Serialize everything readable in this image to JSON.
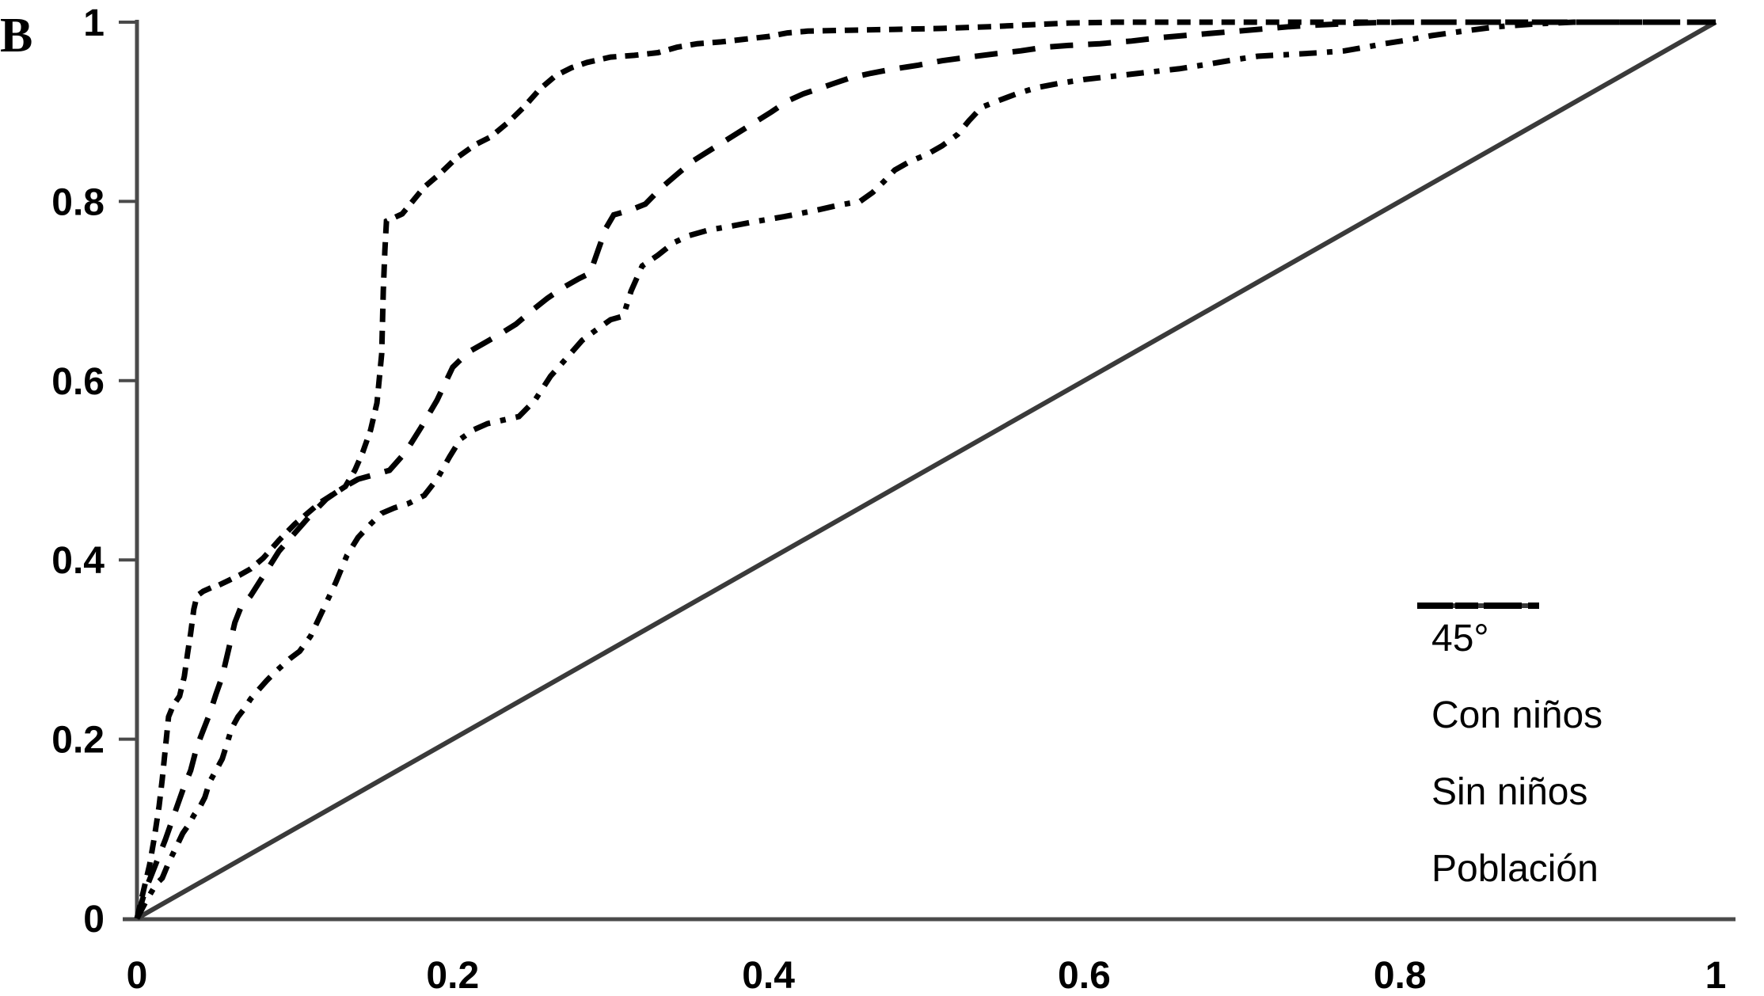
{
  "panel_label": "B",
  "colors": {
    "background": "#ffffff",
    "axis": "#4a4a4a",
    "diagonal": "#3a3a3a",
    "curve": "#000000"
  },
  "chart_data": {
    "type": "line",
    "title": "",
    "xlabel": "",
    "ylabel": "",
    "xlim": [
      0,
      1
    ],
    "ylim": [
      0,
      1
    ],
    "grid": false,
    "legend_position": "lower-right",
    "x_ticks": [
      0,
      0.2,
      0.4,
      0.6,
      0.8,
      1
    ],
    "x_tick_labels": [
      "0",
      "0.2",
      "0.4",
      "0.6",
      "0.8",
      "1"
    ],
    "y_ticks": [
      0,
      0.2,
      0.4,
      0.6,
      0.8,
      1
    ],
    "y_tick_labels": [
      "0",
      "0.2",
      "0.4",
      "0.6",
      "0.8",
      "1"
    ],
    "series": [
      {
        "name": "45°",
        "style": "solid",
        "color": "#3a3a3a",
        "points": [
          [
            0,
            0
          ],
          [
            1,
            1
          ]
        ]
      },
      {
        "name": "Con niños",
        "style": "dash-dot",
        "color": "#000000",
        "points": [
          [
            0,
            0
          ],
          [
            0.006,
            0.02
          ],
          [
            0.012,
            0.038
          ],
          [
            0.016,
            0.045
          ],
          [
            0.02,
            0.062
          ],
          [
            0.025,
            0.08
          ],
          [
            0.029,
            0.095
          ],
          [
            0.033,
            0.105
          ],
          [
            0.036,
            0.115
          ],
          [
            0.04,
            0.125
          ],
          [
            0.043,
            0.135
          ],
          [
            0.046,
            0.152
          ],
          [
            0.05,
            0.165
          ],
          [
            0.054,
            0.178
          ],
          [
            0.057,
            0.195
          ],
          [
            0.06,
            0.212
          ],
          [
            0.064,
            0.225
          ],
          [
            0.068,
            0.234
          ],
          [
            0.072,
            0.245
          ],
          [
            0.077,
            0.255
          ],
          [
            0.082,
            0.265
          ],
          [
            0.087,
            0.274
          ],
          [
            0.092,
            0.282
          ],
          [
            0.097,
            0.29
          ],
          [
            0.103,
            0.298
          ],
          [
            0.11,
            0.315
          ],
          [
            0.118,
            0.345
          ],
          [
            0.126,
            0.375
          ],
          [
            0.133,
            0.405
          ],
          [
            0.14,
            0.425
          ],
          [
            0.148,
            0.44
          ],
          [
            0.155,
            0.452
          ],
          [
            0.163,
            0.458
          ],
          [
            0.172,
            0.463
          ],
          [
            0.182,
            0.472
          ],
          [
            0.19,
            0.49
          ],
          [
            0.198,
            0.515
          ],
          [
            0.205,
            0.535
          ],
          [
            0.213,
            0.545
          ],
          [
            0.222,
            0.552
          ],
          [
            0.232,
            0.556
          ],
          [
            0.242,
            0.56
          ],
          [
            0.252,
            0.578
          ],
          [
            0.262,
            0.605
          ],
          [
            0.272,
            0.625
          ],
          [
            0.282,
            0.645
          ],
          [
            0.292,
            0.658
          ],
          [
            0.3,
            0.668
          ],
          [
            0.308,
            0.672
          ],
          [
            0.313,
            0.7
          ],
          [
            0.32,
            0.728
          ],
          [
            0.33,
            0.74
          ],
          [
            0.34,
            0.754
          ],
          [
            0.35,
            0.762
          ],
          [
            0.362,
            0.768
          ],
          [
            0.375,
            0.772
          ],
          [
            0.39,
            0.777
          ],
          [
            0.41,
            0.783
          ],
          [
            0.43,
            0.79
          ],
          [
            0.445,
            0.796
          ],
          [
            0.458,
            0.8
          ],
          [
            0.466,
            0.81
          ],
          [
            0.473,
            0.822
          ],
          [
            0.48,
            0.835
          ],
          [
            0.49,
            0.845
          ],
          [
            0.5,
            0.852
          ],
          [
            0.51,
            0.862
          ],
          [
            0.52,
            0.875
          ],
          [
            0.527,
            0.89
          ],
          [
            0.535,
            0.905
          ],
          [
            0.545,
            0.912
          ],
          [
            0.557,
            0.92
          ],
          [
            0.57,
            0.927
          ],
          [
            0.585,
            0.932
          ],
          [
            0.6,
            0.936
          ],
          [
            0.62,
            0.94
          ],
          [
            0.64,
            0.944
          ],
          [
            0.66,
            0.948
          ],
          [
            0.678,
            0.953
          ],
          [
            0.695,
            0.958
          ],
          [
            0.71,
            0.962
          ],
          [
            0.73,
            0.964
          ],
          [
            0.75,
            0.966
          ],
          [
            0.765,
            0.968
          ],
          [
            0.778,
            0.972
          ],
          [
            0.79,
            0.976
          ],
          [
            0.805,
            0.98
          ],
          [
            0.82,
            0.985
          ],
          [
            0.84,
            0.99
          ],
          [
            0.862,
            0.995
          ],
          [
            0.885,
            0.998
          ],
          [
            0.91,
            1
          ],
          [
            1,
            1
          ]
        ]
      },
      {
        "name": "Sin niños",
        "style": "fine-dash",
        "color": "#000000",
        "points": [
          [
            0,
            0
          ],
          [
            0.004,
            0.03
          ],
          [
            0.008,
            0.06
          ],
          [
            0.011,
            0.09
          ],
          [
            0.014,
            0.125
          ],
          [
            0.016,
            0.155
          ],
          [
            0.018,
            0.19
          ],
          [
            0.02,
            0.225
          ],
          [
            0.023,
            0.238
          ],
          [
            0.027,
            0.248
          ],
          [
            0.03,
            0.27
          ],
          [
            0.032,
            0.295
          ],
          [
            0.034,
            0.318
          ],
          [
            0.036,
            0.345
          ],
          [
            0.038,
            0.36
          ],
          [
            0.042,
            0.365
          ],
          [
            0.047,
            0.369
          ],
          [
            0.052,
            0.372
          ],
          [
            0.058,
            0.377
          ],
          [
            0.065,
            0.383
          ],
          [
            0.072,
            0.39
          ],
          [
            0.08,
            0.402
          ],
          [
            0.09,
            0.422
          ],
          [
            0.1,
            0.44
          ],
          [
            0.108,
            0.452
          ],
          [
            0.116,
            0.464
          ],
          [
            0.124,
            0.473
          ],
          [
            0.132,
            0.482
          ],
          [
            0.138,
            0.5
          ],
          [
            0.143,
            0.52
          ],
          [
            0.148,
            0.545
          ],
          [
            0.152,
            0.575
          ],
          [
            0.155,
            0.63
          ],
          [
            0.156,
            0.7
          ],
          [
            0.157,
            0.745
          ],
          [
            0.158,
            0.778
          ],
          [
            0.168,
            0.786
          ],
          [
            0.182,
            0.816
          ],
          [
            0.192,
            0.831
          ],
          [
            0.202,
            0.848
          ],
          [
            0.214,
            0.863
          ],
          [
            0.224,
            0.872
          ],
          [
            0.235,
            0.888
          ],
          [
            0.245,
            0.905
          ],
          [
            0.255,
            0.925
          ],
          [
            0.265,
            0.94
          ],
          [
            0.275,
            0.949
          ],
          [
            0.285,
            0.955
          ],
          [
            0.3,
            0.961
          ],
          [
            0.315,
            0.963
          ],
          [
            0.33,
            0.966
          ],
          [
            0.342,
            0.972
          ],
          [
            0.355,
            0.976
          ],
          [
            0.37,
            0.978
          ],
          [
            0.385,
            0.981
          ],
          [
            0.4,
            0.984
          ],
          [
            0.412,
            0.988
          ],
          [
            0.425,
            0.99
          ],
          [
            0.45,
            0.991
          ],
          [
            0.48,
            0.992
          ],
          [
            0.51,
            0.993
          ],
          [
            0.54,
            0.995
          ],
          [
            0.565,
            0.997
          ],
          [
            0.59,
            0.999
          ],
          [
            0.62,
            1
          ],
          [
            1,
            1
          ]
        ]
      },
      {
        "name": "Población",
        "style": "long-dash",
        "color": "#000000",
        "points": [
          [
            0,
            0
          ],
          [
            0.005,
            0.03
          ],
          [
            0.01,
            0.052
          ],
          [
            0.014,
            0.07
          ],
          [
            0.018,
            0.088
          ],
          [
            0.022,
            0.108
          ],
          [
            0.026,
            0.128
          ],
          [
            0.03,
            0.148
          ],
          [
            0.034,
            0.165
          ],
          [
            0.038,
            0.192
          ],
          [
            0.042,
            0.21
          ],
          [
            0.046,
            0.228
          ],
          [
            0.05,
            0.25
          ],
          [
            0.054,
            0.27
          ],
          [
            0.058,
            0.3
          ],
          [
            0.062,
            0.33
          ],
          [
            0.066,
            0.348
          ],
          [
            0.072,
            0.36
          ],
          [
            0.08,
            0.382
          ],
          [
            0.09,
            0.41
          ],
          [
            0.1,
            0.43
          ],
          [
            0.11,
            0.45
          ],
          [
            0.12,
            0.468
          ],
          [
            0.13,
            0.48
          ],
          [
            0.14,
            0.49
          ],
          [
            0.15,
            0.495
          ],
          [
            0.16,
            0.5
          ],
          [
            0.17,
            0.52
          ],
          [
            0.18,
            0.548
          ],
          [
            0.19,
            0.578
          ],
          [
            0.2,
            0.615
          ],
          [
            0.21,
            0.632
          ],
          [
            0.22,
            0.642
          ],
          [
            0.23,
            0.652
          ],
          [
            0.24,
            0.663
          ],
          [
            0.25,
            0.678
          ],
          [
            0.26,
            0.692
          ],
          [
            0.27,
            0.704
          ],
          [
            0.28,
            0.714
          ],
          [
            0.287,
            0.72
          ],
          [
            0.292,
            0.745
          ],
          [
            0.297,
            0.77
          ],
          [
            0.302,
            0.785
          ],
          [
            0.312,
            0.79
          ],
          [
            0.322,
            0.797
          ],
          [
            0.332,
            0.815
          ],
          [
            0.342,
            0.83
          ],
          [
            0.352,
            0.845
          ],
          [
            0.362,
            0.856
          ],
          [
            0.372,
            0.867
          ],
          [
            0.382,
            0.878
          ],
          [
            0.392,
            0.889
          ],
          [
            0.402,
            0.9
          ],
          [
            0.412,
            0.912
          ],
          [
            0.422,
            0.92
          ],
          [
            0.432,
            0.926
          ],
          [
            0.442,
            0.932
          ],
          [
            0.452,
            0.938
          ],
          [
            0.465,
            0.943
          ],
          [
            0.48,
            0.948
          ],
          [
            0.495,
            0.952
          ],
          [
            0.51,
            0.957
          ],
          [
            0.527,
            0.961
          ],
          [
            0.545,
            0.965
          ],
          [
            0.56,
            0.968
          ],
          [
            0.575,
            0.972
          ],
          [
            0.59,
            0.974
          ],
          [
            0.61,
            0.976
          ],
          [
            0.63,
            0.979
          ],
          [
            0.65,
            0.983
          ],
          [
            0.67,
            0.986
          ],
          [
            0.69,
            0.989
          ],
          [
            0.71,
            0.992
          ],
          [
            0.73,
            0.995
          ],
          [
            0.75,
            0.997
          ],
          [
            0.775,
            0.999
          ],
          [
            0.8,
            1
          ],
          [
            1,
            1
          ]
        ]
      }
    ]
  },
  "legend": {
    "items": [
      {
        "label": "45°"
      },
      {
        "label": "Con niños"
      },
      {
        "label": "Sin niños"
      },
      {
        "label": "Población"
      }
    ]
  }
}
